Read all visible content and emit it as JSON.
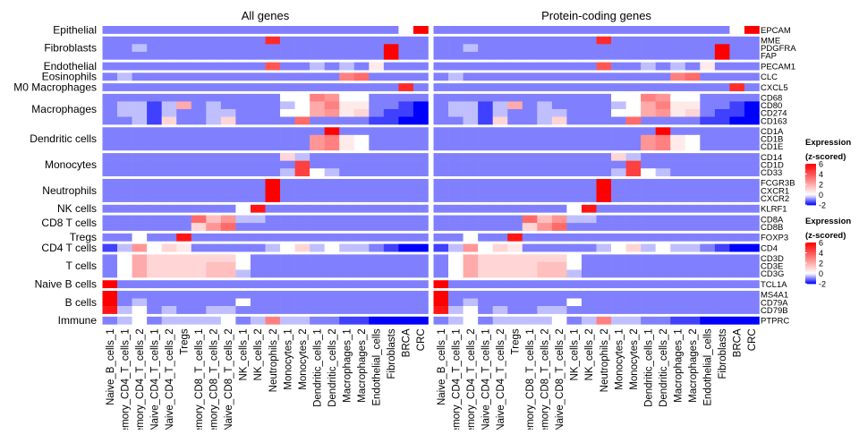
{
  "chart_data": {
    "type": "heatmap",
    "panels": [
      "All genes",
      "Protein-coding genes"
    ],
    "columns": [
      "Naive_B_cells_1",
      "Memory_CD4_T_cells_1",
      "Memory_CD4_T_cells_2",
      "Naive_CD4_T_cells_1",
      "Naive_CD4_T_cells_2",
      "Tregs",
      "Memory_CD8_T_cells_1",
      "Memory_CD8_T_cells_2",
      "Naive_CD8_T_cells_2",
      "NK_cells_1",
      "NK_cells_2",
      "Neutrophils_2",
      "Monocytes_1",
      "Monocytes_2",
      "Dendritic_cells_1",
      "Dendritic_cells_2",
      "Macrophages_1",
      "Macrophages_2",
      "Endothelial_cells",
      "Fibroblasts",
      "BRCA",
      "CRC"
    ],
    "row_groups": [
      {
        "name": "Epithelial",
        "genes": [
          "EPCAM"
        ]
      },
      {
        "name": "Fibroblasts",
        "genes": [
          "MME",
          "PDGFRA",
          "FAP"
        ]
      },
      {
        "name": "Endothelial",
        "genes": [
          "PECAM1"
        ]
      },
      {
        "name": "Eosinophils",
        "genes": [
          "CLC"
        ]
      },
      {
        "name": "M0 Macrophages",
        "genes": [
          "CXCL5"
        ]
      },
      {
        "name": "Macrophages",
        "genes": [
          "CD68",
          "CD80",
          "CD274",
          "CD163"
        ]
      },
      {
        "name": "Dendritic cells",
        "genes": [
          "CD1A",
          "CD1B",
          "CD1E"
        ]
      },
      {
        "name": "Monocytes",
        "genes": [
          "CD14",
          "CD1D",
          "CD33"
        ]
      },
      {
        "name": "Neutrophils",
        "genes": [
          "FCGR3B",
          "CXCR1",
          "CXCR2"
        ]
      },
      {
        "name": "NK cells",
        "genes": [
          "KLRF1"
        ]
      },
      {
        "name": "CD8 T cells",
        "genes": [
          "CD8A",
          "CD8B"
        ]
      },
      {
        "name": "Tregs",
        "genes": [
          "FOXP3"
        ]
      },
      {
        "name": "CD4 T cells",
        "genes": [
          "CD4"
        ]
      },
      {
        "name": "T cells",
        "genes": [
          "CD3D",
          "CD3E",
          "CD3G"
        ]
      },
      {
        "name": "Naive B cells",
        "genes": [
          "TCL1A"
        ]
      },
      {
        "name": "B cells",
        "genes": [
          "MS4A1",
          "CD79A",
          "CD79B"
        ]
      },
      {
        "name": "Immune",
        "genes": [
          "PTPRC"
        ]
      }
    ],
    "values": [
      [
        -1,
        -1,
        -1,
        -1,
        -1,
        -1,
        -1,
        -1,
        -1,
        -1,
        -1,
        -1,
        -1,
        -1,
        -1,
        -1,
        -1,
        -1,
        -1,
        -1,
        0,
        6
      ],
      [
        -1,
        -1,
        -1,
        -1,
        -1,
        -1,
        -1,
        -1,
        -1,
        -1,
        -1,
        5,
        -1,
        -1,
        -1,
        -1,
        -1,
        -1,
        -1,
        -1,
        -1,
        -1
      ],
      [
        -1,
        -1,
        -0.5,
        -1,
        -1,
        -1,
        -1,
        -1,
        -1,
        -1,
        -1,
        -1,
        -1,
        -1,
        -1,
        -1,
        -1,
        -1,
        -1,
        6,
        -1,
        -1
      ],
      [
        -1,
        -1,
        -1,
        -1,
        -1,
        -1,
        -1,
        -1,
        -1,
        -1,
        -1,
        -1,
        -1,
        -1,
        -1,
        -1,
        -1,
        -1,
        -1,
        6,
        -1,
        -1
      ],
      [
        -1,
        -1,
        -1,
        -1,
        -1,
        -1,
        -1,
        -1,
        -1,
        -1,
        -1,
        4,
        -1,
        -1,
        -0.5,
        -1,
        -0.5,
        -1,
        0.5,
        -1,
        -1,
        -1
      ],
      [
        -1,
        -0.5,
        -1,
        -1,
        -1,
        -1,
        -1,
        -1,
        -1,
        -1,
        -1,
        -1,
        -1,
        -1,
        -1,
        -1,
        3,
        3.5,
        -1,
        -1,
        -1,
        -1
      ],
      [
        -1,
        -1,
        -1,
        -1,
        -1,
        -1,
        -1,
        -1,
        -1,
        -1,
        -1,
        -1,
        -1,
        -1,
        -1,
        -1,
        -1,
        -1,
        -1,
        -1,
        5,
        -1
      ],
      [
        -1,
        -1,
        -1,
        -1,
        -1,
        -1,
        -1,
        -1,
        -1,
        -1,
        -1,
        -1,
        0,
        0,
        3,
        2.5,
        0,
        0,
        -1,
        -1,
        -1,
        -1
      ],
      [
        -1,
        -0.5,
        -0.5,
        -1.5,
        -0.5,
        2,
        -1,
        -0.5,
        -1,
        -1,
        -1,
        -1,
        -0.5,
        0,
        2,
        3,
        0.5,
        0.5,
        -1,
        -1,
        -1.5,
        -2
      ],
      [
        -1,
        -0.5,
        -0.5,
        -1.5,
        -0.5,
        -1,
        -1,
        -0.5,
        -0.5,
        -1,
        -1,
        -1,
        0,
        0,
        2,
        2.5,
        0.5,
        1,
        -1,
        -1.5,
        -1.5,
        -2
      ],
      [
        -1,
        -1,
        -0.5,
        -1.5,
        1,
        -1,
        -1,
        -0.5,
        1,
        -1,
        -1,
        -1,
        -1,
        3.5,
        -1,
        -1,
        -1,
        -1,
        -1.5,
        -1.5,
        -2,
        -2
      ],
      [
        -1,
        -1,
        -1,
        -1,
        -1,
        -1,
        -1,
        -1,
        -1,
        -1,
        -1,
        -1,
        -1,
        -1,
        -1,
        6,
        -1,
        -1,
        -1,
        -1,
        -1,
        -1
      ],
      [
        -1,
        -1,
        -1,
        -1,
        -1,
        -1,
        -1,
        -1,
        -1,
        -1,
        -1,
        -1,
        -1,
        -1,
        2.5,
        3,
        0.5,
        0,
        -1,
        -1,
        -1,
        -1
      ],
      [
        -1,
        -1,
        -1,
        -1,
        -1,
        -1,
        -1,
        -1,
        -1,
        -1,
        -1,
        -1,
        -1,
        -1,
        2.5,
        3,
        0.5,
        0,
        -1,
        -1,
        -1,
        -1
      ],
      [
        -1,
        -1,
        -1,
        -1,
        -1,
        -1,
        -1,
        -1,
        -1,
        -1,
        -1,
        -1,
        1,
        -0.5,
        -1,
        -1,
        -1,
        -1,
        -1,
        -1,
        -1,
        -1
      ],
      [
        -1,
        -1,
        -1,
        -1,
        -1,
        -1,
        -1,
        -1,
        -1,
        -1,
        -1,
        -1,
        -1,
        4.5,
        -1,
        -1,
        -1,
        -1,
        -1,
        -1,
        -1,
        -1
      ],
      [
        -1,
        -1,
        -1,
        -1,
        -1,
        -1,
        -1,
        -1,
        -1,
        -1,
        -1,
        -1,
        -0.5,
        4.5,
        0,
        -0.5,
        -1,
        -1,
        -1,
        -1,
        -1,
        -1
      ],
      [
        -1,
        -1,
        -1,
        -1,
        -1,
        -1,
        -1,
        -1,
        -1,
        -1,
        -1,
        6,
        -1,
        -1,
        -1,
        -1,
        -1,
        -1,
        -1,
        -1,
        -1,
        -1
      ],
      [
        -1,
        -1,
        -1,
        -1,
        -1,
        -1,
        -1,
        -1,
        -1,
        -1,
        -1,
        6,
        -1,
        -1,
        -1,
        -1,
        -1,
        -1,
        -1,
        -1,
        -1,
        -1
      ],
      [
        -1,
        -1,
        -1,
        -1,
        -1,
        -1,
        -1,
        -1,
        -1,
        -1,
        -1,
        6,
        -1,
        -1,
        -1,
        -1,
        -1,
        -1,
        -1,
        -1,
        -1,
        -1
      ],
      [
        -1,
        -1,
        -1,
        -1,
        -1,
        -1,
        -1,
        -1,
        -1,
        0,
        5.5,
        -1,
        -1,
        -1,
        -1,
        -1,
        -1,
        -1,
        -1,
        -1,
        -1,
        -1
      ],
      [
        -1,
        -1,
        -1,
        -1,
        -1,
        -1,
        3.5,
        1.5,
        2.5,
        -0.5,
        -0.5,
        -1,
        -1,
        -1,
        -1,
        -1,
        -1,
        -1,
        -1,
        -1,
        -1,
        -1
      ],
      [
        -1,
        -1,
        -1,
        -1,
        -1,
        -1,
        1,
        2.5,
        3.5,
        -1,
        -1,
        -1,
        -1,
        -1,
        -1,
        -1,
        -1,
        -1,
        -1,
        -1,
        -1,
        -1
      ],
      [
        -1,
        -1,
        0,
        -1,
        -1,
        5.5,
        -1,
        -1,
        -1,
        -1,
        -1,
        -1,
        -1,
        -1,
        -1,
        -1,
        -1,
        -1,
        -1,
        -1,
        -1,
        -1
      ],
      [
        -1.5,
        -0.5,
        2.5,
        0,
        1,
        0.5,
        -1,
        -1,
        -1,
        -1,
        -1,
        -0.5,
        0,
        1,
        -0.5,
        0,
        -0.5,
        -0.5,
        -1,
        -1.5,
        -2,
        -2
      ],
      [
        -1,
        0,
        2,
        1,
        1,
        1,
        1,
        1,
        1,
        0,
        -1,
        -1,
        -1,
        -1,
        -1,
        -1,
        -1,
        -1,
        -1,
        -1,
        -1,
        -1
      ],
      [
        -1,
        0,
        2,
        1,
        1,
        1,
        1,
        1.5,
        1.5,
        0,
        -1,
        -1,
        -1,
        -1,
        -1,
        -1,
        -1,
        -1,
        -1,
        -1,
        -1,
        -1
      ],
      [
        -1,
        0,
        2,
        1,
        1,
        1,
        1,
        1.5,
        1.5,
        -0.5,
        -1,
        -1,
        -1,
        -1,
        -1,
        -1,
        -1,
        -1,
        -1,
        -1,
        -1,
        -1
      ],
      [
        6,
        -1,
        -1,
        -1,
        -1,
        -1,
        -1,
        -1,
        -1,
        -1,
        -1,
        -1,
        -1,
        -1,
        -1,
        -1,
        -1,
        -1,
        -1,
        -1,
        -1,
        -1
      ],
      [
        6,
        -1,
        -1,
        -1,
        -1,
        -1,
        -1,
        -1,
        -1,
        -1,
        -1,
        -1,
        -1,
        -1,
        -1,
        -1,
        -1,
        -1,
        -1,
        -1,
        -1,
        -1
      ],
      [
        6,
        -1,
        -0.5,
        -1,
        -1,
        -1,
        -1,
        -1,
        -1,
        0,
        -1,
        -1,
        -1,
        -1,
        -1,
        -1,
        -1,
        -1,
        -1,
        -1,
        -1,
        -1
      ],
      [
        5.5,
        -0.5,
        0,
        -1,
        -0.5,
        -1,
        -1,
        -0.5,
        -0.5,
        -1,
        -1,
        -1,
        -1,
        -1,
        -1,
        -1,
        -1,
        -1,
        -1,
        -1,
        -1,
        -1
      ],
      [
        -1,
        -0.5,
        0,
        -1,
        -0.5,
        -0.5,
        -0.5,
        -0.5,
        0,
        -1,
        -0.5,
        3,
        -0.5,
        -0.5,
        -1,
        -1,
        -1.5,
        -1.5,
        -2,
        -2,
        -2,
        -2
      ]
    ],
    "legend": {
      "title": [
        "Expression",
        "(z-scored)"
      ],
      "ticks": [
        6,
        4,
        2,
        0,
        -2
      ],
      "range": [
        -2,
        6
      ],
      "placement": "right"
    },
    "colors": {
      "low": "#0000ff",
      "mid": "#ffffff",
      "high": "#ff0000"
    }
  }
}
